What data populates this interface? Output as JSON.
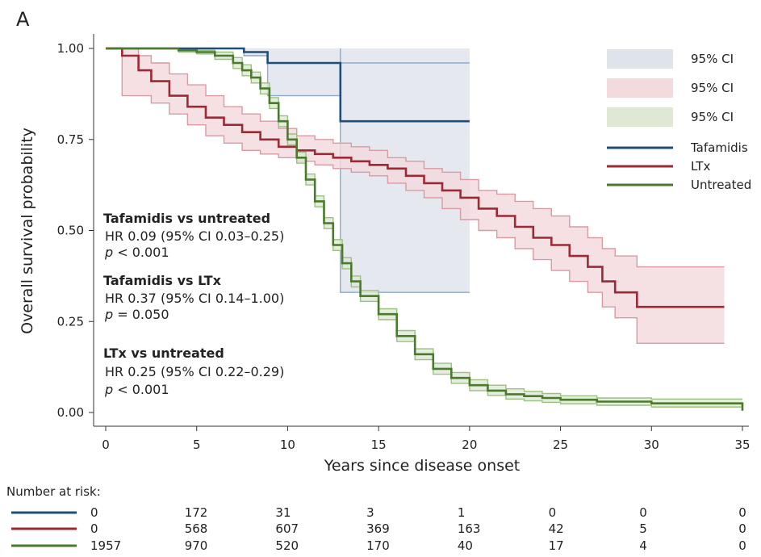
{
  "panel_label": "A",
  "chart_data": {
    "type": "line",
    "subtype": "kaplan-meier",
    "xlabel": "Years since disease onset",
    "ylabel": "Overall survival probability",
    "xlim": [
      0,
      35
    ],
    "ylim": [
      0,
      1
    ],
    "xticks": [
      "0",
      "5",
      "10",
      "15",
      "20",
      "25",
      "30",
      "35"
    ],
    "yticks": [
      "0.00",
      "0.25",
      "0.50",
      "0.75",
      "1.00"
    ],
    "legend_position": "top-right",
    "legend": {
      "ci_labels": [
        "95% CI",
        "95% CI",
        "95% CI"
      ],
      "line_labels": [
        "Tafamidis",
        "LTx",
        "Untreated"
      ]
    },
    "annotations": [
      {
        "title": "Tafamidis vs untreated",
        "hr": "HR 0.09 (95% CI 0.03–0.25)",
        "p_italic": "p",
        "p_rest": " < 0.001"
      },
      {
        "title": "Tafamidis vs LTx",
        "hr": "HR 0.37 (95% CI 0.14–1.00)",
        "p_italic": "p",
        "p_rest": " = 0.050"
      },
      {
        "title": "LTx vs untreated",
        "hr": "HR 0.25 (95% CI 0.22–0.29)",
        "p_italic": "p",
        "p_rest": " < 0.001"
      }
    ],
    "series": [
      {
        "name": "Tafamidis",
        "color": "#1f4e79",
        "ci_color": "#dfe4eb",
        "ci_edge": "#8fa9c9",
        "step": [
          [
            0,
            1.0
          ],
          [
            6.3,
            1.0
          ],
          [
            7.6,
            0.99
          ],
          [
            8.9,
            0.96
          ],
          [
            12.9,
            0.96
          ],
          [
            12.9,
            0.8
          ],
          [
            20,
            0.8
          ]
        ],
        "upper": [
          [
            0,
            1.0
          ],
          [
            20,
            1.0
          ]
        ],
        "lower": [
          [
            0,
            1.0
          ],
          [
            6.3,
            1.0
          ],
          [
            7.6,
            0.98
          ],
          [
            8.9,
            0.87
          ],
          [
            12.9,
            0.87
          ],
          [
            12.9,
            0.33
          ],
          [
            20,
            0.33
          ]
        ],
        "upper_end": [
          [
            12.9,
            1.0
          ],
          [
            12.9,
            0.96
          ],
          [
            20,
            0.96
          ]
        ]
      },
      {
        "name": "LTx",
        "color": "#9b2a35",
        "ci_color": "#f3dadd",
        "ci_edge": "#d99aa2",
        "step": [
          [
            0,
            1.0
          ],
          [
            0.9,
            0.98
          ],
          [
            1.2,
            0.98
          ],
          [
            1.8,
            0.94
          ],
          [
            2.5,
            0.91
          ],
          [
            3.5,
            0.87
          ],
          [
            4.5,
            0.84
          ],
          [
            5.5,
            0.81
          ],
          [
            6.5,
            0.79
          ],
          [
            7.5,
            0.77
          ],
          [
            8.5,
            0.75
          ],
          [
            9.5,
            0.73
          ],
          [
            10.5,
            0.72
          ],
          [
            11.5,
            0.71
          ],
          [
            12.5,
            0.7
          ],
          [
            13.5,
            0.69
          ],
          [
            14.5,
            0.68
          ],
          [
            15.5,
            0.67
          ],
          [
            16.5,
            0.65
          ],
          [
            17.5,
            0.63
          ],
          [
            18.5,
            0.61
          ],
          [
            19.5,
            0.59
          ],
          [
            20.5,
            0.56
          ],
          [
            21.5,
            0.54
          ],
          [
            22.5,
            0.51
          ],
          [
            23.5,
            0.48
          ],
          [
            24.5,
            0.46
          ],
          [
            25.5,
            0.43
          ],
          [
            26.5,
            0.4
          ],
          [
            27.3,
            0.36
          ],
          [
            28.0,
            0.36
          ],
          [
            28.0,
            0.33
          ],
          [
            29.2,
            0.33
          ],
          [
            29.2,
            0.29
          ],
          [
            34.0,
            0.29
          ]
        ],
        "upper": [
          [
            0,
            1.0
          ],
          [
            0.9,
            1.0
          ],
          [
            1.8,
            0.98
          ],
          [
            2.5,
            0.96
          ],
          [
            3.5,
            0.93
          ],
          [
            4.5,
            0.9
          ],
          [
            5.5,
            0.87
          ],
          [
            6.5,
            0.84
          ],
          [
            7.5,
            0.82
          ],
          [
            8.5,
            0.8
          ],
          [
            9.5,
            0.78
          ],
          [
            10.5,
            0.76
          ],
          [
            11.5,
            0.75
          ],
          [
            12.5,
            0.74
          ],
          [
            13.5,
            0.73
          ],
          [
            14.5,
            0.72
          ],
          [
            15.5,
            0.7
          ],
          [
            16.5,
            0.69
          ],
          [
            17.5,
            0.67
          ],
          [
            18.5,
            0.66
          ],
          [
            19.5,
            0.64
          ],
          [
            20.5,
            0.61
          ],
          [
            21.5,
            0.6
          ],
          [
            22.5,
            0.58
          ],
          [
            23.5,
            0.56
          ],
          [
            24.5,
            0.54
          ],
          [
            25.5,
            0.51
          ],
          [
            26.5,
            0.48
          ],
          [
            27.3,
            0.45
          ],
          [
            28.0,
            0.43
          ],
          [
            29.2,
            0.4
          ],
          [
            34.0,
            0.4
          ]
        ],
        "lower": [
          [
            0,
            1.0
          ],
          [
            0.9,
            0.87
          ],
          [
            1.8,
            0.87
          ],
          [
            2.5,
            0.85
          ],
          [
            3.5,
            0.82
          ],
          [
            4.5,
            0.79
          ],
          [
            5.5,
            0.76
          ],
          [
            6.5,
            0.74
          ],
          [
            7.5,
            0.72
          ],
          [
            8.5,
            0.71
          ],
          [
            9.5,
            0.7
          ],
          [
            10.5,
            0.69
          ],
          [
            11.5,
            0.68
          ],
          [
            12.5,
            0.67
          ],
          [
            13.5,
            0.66
          ],
          [
            14.5,
            0.65
          ],
          [
            15.5,
            0.63
          ],
          [
            16.5,
            0.61
          ],
          [
            17.5,
            0.59
          ],
          [
            18.5,
            0.56
          ],
          [
            19.5,
            0.53
          ],
          [
            20.5,
            0.5
          ],
          [
            21.5,
            0.48
          ],
          [
            22.5,
            0.45
          ],
          [
            23.5,
            0.42
          ],
          [
            24.5,
            0.39
          ],
          [
            25.5,
            0.36
          ],
          [
            26.5,
            0.33
          ],
          [
            27.3,
            0.29
          ],
          [
            28.0,
            0.26
          ],
          [
            29.2,
            0.19
          ],
          [
            34.0,
            0.19
          ]
        ]
      },
      {
        "name": "Untreated",
        "color": "#4a7a2c",
        "ci_color": "#dfe8d3",
        "ci_edge": "#9cbf83",
        "step": [
          [
            0,
            1.0
          ],
          [
            3,
            1.0
          ],
          [
            4,
            0.995
          ],
          [
            5,
            0.99
          ],
          [
            6,
            0.98
          ],
          [
            7,
            0.96
          ],
          [
            7.5,
            0.94
          ],
          [
            8,
            0.92
          ],
          [
            8.5,
            0.89
          ],
          [
            9,
            0.85
          ],
          [
            9.5,
            0.8
          ],
          [
            10,
            0.75
          ],
          [
            10.5,
            0.7
          ],
          [
            11,
            0.64
          ],
          [
            11.5,
            0.58
          ],
          [
            12,
            0.52
          ],
          [
            12.5,
            0.46
          ],
          [
            13,
            0.41
          ],
          [
            13.5,
            0.36
          ],
          [
            14,
            0.32
          ],
          [
            15,
            0.27
          ],
          [
            16,
            0.21
          ],
          [
            17,
            0.16
          ],
          [
            18,
            0.12
          ],
          [
            19,
            0.095
          ],
          [
            20,
            0.075
          ],
          [
            21,
            0.06
          ],
          [
            22,
            0.05
          ],
          [
            23,
            0.045
          ],
          [
            24,
            0.04
          ],
          [
            25,
            0.035
          ],
          [
            27,
            0.03
          ],
          [
            30,
            0.025
          ],
          [
            35,
            0.025
          ],
          [
            35,
            0.005
          ]
        ],
        "upper": [
          [
            0,
            1.0
          ],
          [
            3,
            1.0
          ],
          [
            4,
            1.0
          ],
          [
            5,
            0.995
          ],
          [
            6,
            0.99
          ],
          [
            7,
            0.975
          ],
          [
            7.5,
            0.955
          ],
          [
            8,
            0.935
          ],
          [
            8.5,
            0.905
          ],
          [
            9,
            0.865
          ],
          [
            9.5,
            0.815
          ],
          [
            10,
            0.765
          ],
          [
            10.5,
            0.715
          ],
          [
            11,
            0.655
          ],
          [
            11.5,
            0.595
          ],
          [
            12,
            0.535
          ],
          [
            12.5,
            0.475
          ],
          [
            13,
            0.425
          ],
          [
            13.5,
            0.375
          ],
          [
            14,
            0.335
          ],
          [
            15,
            0.285
          ],
          [
            16,
            0.225
          ],
          [
            17,
            0.175
          ],
          [
            18,
            0.135
          ],
          [
            19,
            0.11
          ],
          [
            20,
            0.09
          ],
          [
            21,
            0.075
          ],
          [
            22,
            0.065
          ],
          [
            23,
            0.058
          ],
          [
            24,
            0.052
          ],
          [
            25,
            0.046
          ],
          [
            27,
            0.04
          ],
          [
            30,
            0.037
          ],
          [
            35,
            0.037
          ]
        ],
        "lower": [
          [
            0,
            1.0
          ],
          [
            3,
            1.0
          ],
          [
            4,
            0.99
          ],
          [
            5,
            0.985
          ],
          [
            6,
            0.97
          ],
          [
            7,
            0.945
          ],
          [
            7.5,
            0.925
          ],
          [
            8,
            0.905
          ],
          [
            8.5,
            0.875
          ],
          [
            9,
            0.835
          ],
          [
            9.5,
            0.785
          ],
          [
            10,
            0.735
          ],
          [
            10.5,
            0.685
          ],
          [
            11,
            0.625
          ],
          [
            11.5,
            0.565
          ],
          [
            12,
            0.505
          ],
          [
            12.5,
            0.445
          ],
          [
            13,
            0.395
          ],
          [
            13.5,
            0.345
          ],
          [
            14,
            0.305
          ],
          [
            15,
            0.255
          ],
          [
            16,
            0.195
          ],
          [
            17,
            0.145
          ],
          [
            18,
            0.105
          ],
          [
            19,
            0.08
          ],
          [
            20,
            0.06
          ],
          [
            21,
            0.047
          ],
          [
            22,
            0.037
          ],
          [
            23,
            0.032
          ],
          [
            24,
            0.028
          ],
          [
            25,
            0.024
          ],
          [
            27,
            0.02
          ],
          [
            30,
            0.015
          ],
          [
            35,
            0.015
          ]
        ]
      }
    ]
  },
  "risk_table": {
    "title": "Number at risk:",
    "rows": [
      {
        "color": "#1f4e79",
        "values": [
          "0",
          "172",
          "31",
          "3",
          "1",
          "0",
          "0",
          "0"
        ]
      },
      {
        "color": "#9b2a35",
        "values": [
          "0",
          "568",
          "607",
          "369",
          "163",
          "42",
          "5",
          "0"
        ]
      },
      {
        "color": "#4a7a2c",
        "values": [
          "1957",
          "970",
          "520",
          "170",
          "40",
          "17",
          "4",
          "0"
        ]
      }
    ]
  }
}
